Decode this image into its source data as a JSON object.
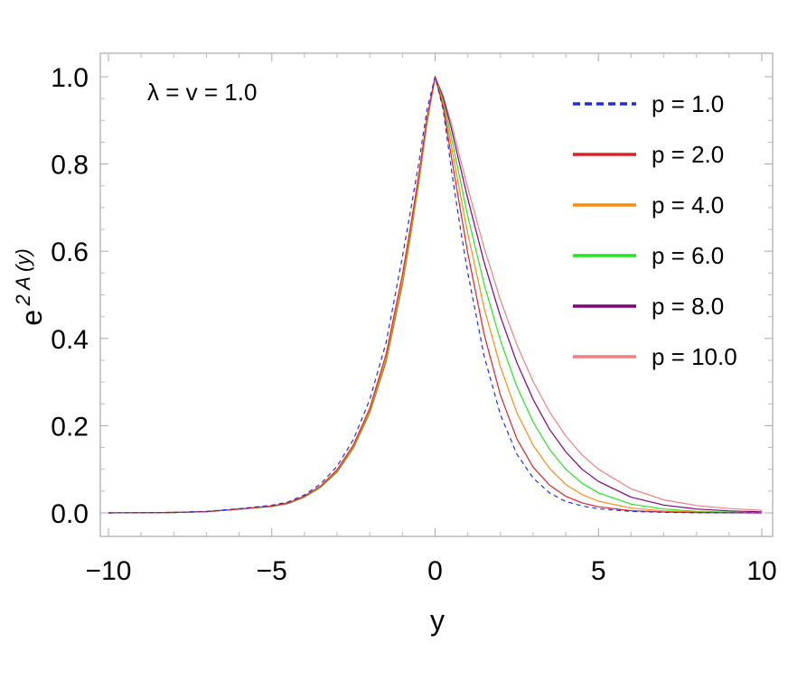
{
  "chart_data": {
    "type": "line",
    "title": "",
    "annotation": "λ = v = 1.0",
    "xlabel": "y",
    "ylabel": "e^{2A(y)}",
    "ylabel_parts": {
      "base": "e",
      "superscript": "2 A (y)"
    },
    "xlim": [
      -10,
      10
    ],
    "ylim": [
      -0.05,
      1.05
    ],
    "xticks": [
      -10,
      -5,
      0,
      5,
      10
    ],
    "xtick_labels": [
      "−10",
      "−5",
      "0",
      "5",
      "10"
    ],
    "yticks": [
      0.0,
      0.2,
      0.4,
      0.6,
      0.8,
      1.0
    ],
    "ytick_labels": [
      "0.0",
      "0.2",
      "0.4",
      "0.6",
      "0.8",
      "1.0"
    ],
    "grid": false,
    "legend_position": "top-right",
    "x": [
      -10,
      -9,
      -8,
      -7,
      -6,
      -5,
      -4.5,
      -4,
      -3.5,
      -3,
      -2.5,
      -2,
      -1.5,
      -1,
      -0.75,
      -0.5,
      -0.25,
      0,
      0.25,
      0.5,
      0.75,
      1,
      1.5,
      2,
      2.5,
      3,
      3.5,
      4,
      4.5,
      5,
      6,
      7,
      8,
      9,
      10
    ],
    "series": [
      {
        "name": "p = 1.0",
        "color": "#1f2fe0",
        "dashed": true,
        "values": [
          0.0001,
          0.0006,
          0.0011,
          0.0036,
          0.0098,
          0.0177,
          0.025,
          0.0412,
          0.0668,
          0.1068,
          0.1684,
          0.26,
          0.3908,
          0.5882,
          0.6937,
          0.802,
          0.924,
          1.0,
          0.924,
          0.786,
          0.663,
          0.55,
          0.36,
          0.225,
          0.135,
          0.08,
          0.046,
          0.026,
          0.016,
          0.0095,
          0.0035,
          0.0012,
          0.0005,
          0.0002,
          0.0001
        ]
      },
      {
        "name": "p = 2.0",
        "color": "#e0202a",
        "dashed": false,
        "values": [
          0.0001,
          0.0005,
          0.001,
          0.0032,
          0.009,
          0.016,
          0.023,
          0.0385,
          0.062,
          0.099,
          0.156,
          0.24,
          0.364,
          0.547,
          0.658,
          0.775,
          0.905,
          1.0,
          0.93,
          0.815,
          0.705,
          0.595,
          0.41,
          0.27,
          0.17,
          0.105,
          0.064,
          0.038,
          0.023,
          0.014,
          0.005,
          0.002,
          0.0008,
          0.0003,
          0.0001
        ]
      },
      {
        "name": "p = 4.0",
        "color": "#ff8a10",
        "dashed": false,
        "values": [
          0.0001,
          0.0005,
          0.001,
          0.0031,
          0.0088,
          0.0155,
          0.0222,
          0.0375,
          0.0605,
          0.0965,
          0.152,
          0.234,
          0.354,
          0.533,
          0.645,
          0.764,
          0.898,
          1.0,
          0.938,
          0.84,
          0.74,
          0.64,
          0.47,
          0.335,
          0.23,
          0.155,
          0.102,
          0.065,
          0.042,
          0.027,
          0.011,
          0.0045,
          0.0018,
          0.0007,
          0.0003
        ]
      },
      {
        "name": "p = 6.0",
        "color": "#22e622",
        "dashed": false,
        "values": [
          0.0001,
          0.0005,
          0.001,
          0.003,
          0.0086,
          0.0152,
          0.0218,
          0.0368,
          0.0595,
          0.095,
          0.15,
          0.231,
          0.35,
          0.527,
          0.64,
          0.76,
          0.896,
          1.0,
          0.945,
          0.86,
          0.77,
          0.68,
          0.525,
          0.395,
          0.29,
          0.208,
          0.146,
          0.1,
          0.068,
          0.046,
          0.02,
          0.0088,
          0.0038,
          0.0016,
          0.0007
        ]
      },
      {
        "name": "p = 8.0",
        "color": "#800080",
        "dashed": false,
        "values": [
          0.0001,
          0.0005,
          0.001,
          0.003,
          0.0085,
          0.015,
          0.0216,
          0.0365,
          0.059,
          0.094,
          0.149,
          0.23,
          0.348,
          0.525,
          0.638,
          0.758,
          0.895,
          1.0,
          0.952,
          0.88,
          0.8,
          0.72,
          0.575,
          0.45,
          0.345,
          0.26,
          0.192,
          0.14,
          0.1,
          0.072,
          0.036,
          0.018,
          0.009,
          0.0045,
          0.0022
        ]
      },
      {
        "name": "p = 10.0",
        "color": "#f08080",
        "dashed": false,
        "values": [
          0.0001,
          0.0005,
          0.001,
          0.003,
          0.0085,
          0.015,
          0.0215,
          0.0363,
          0.0588,
          0.0938,
          0.1485,
          0.229,
          0.347,
          0.524,
          0.637,
          0.757,
          0.894,
          1.0,
          0.956,
          0.892,
          0.818,
          0.745,
          0.608,
          0.488,
          0.386,
          0.301,
          0.232,
          0.176,
          0.133,
          0.1,
          0.055,
          0.03,
          0.017,
          0.01,
          0.006
        ]
      }
    ]
  }
}
